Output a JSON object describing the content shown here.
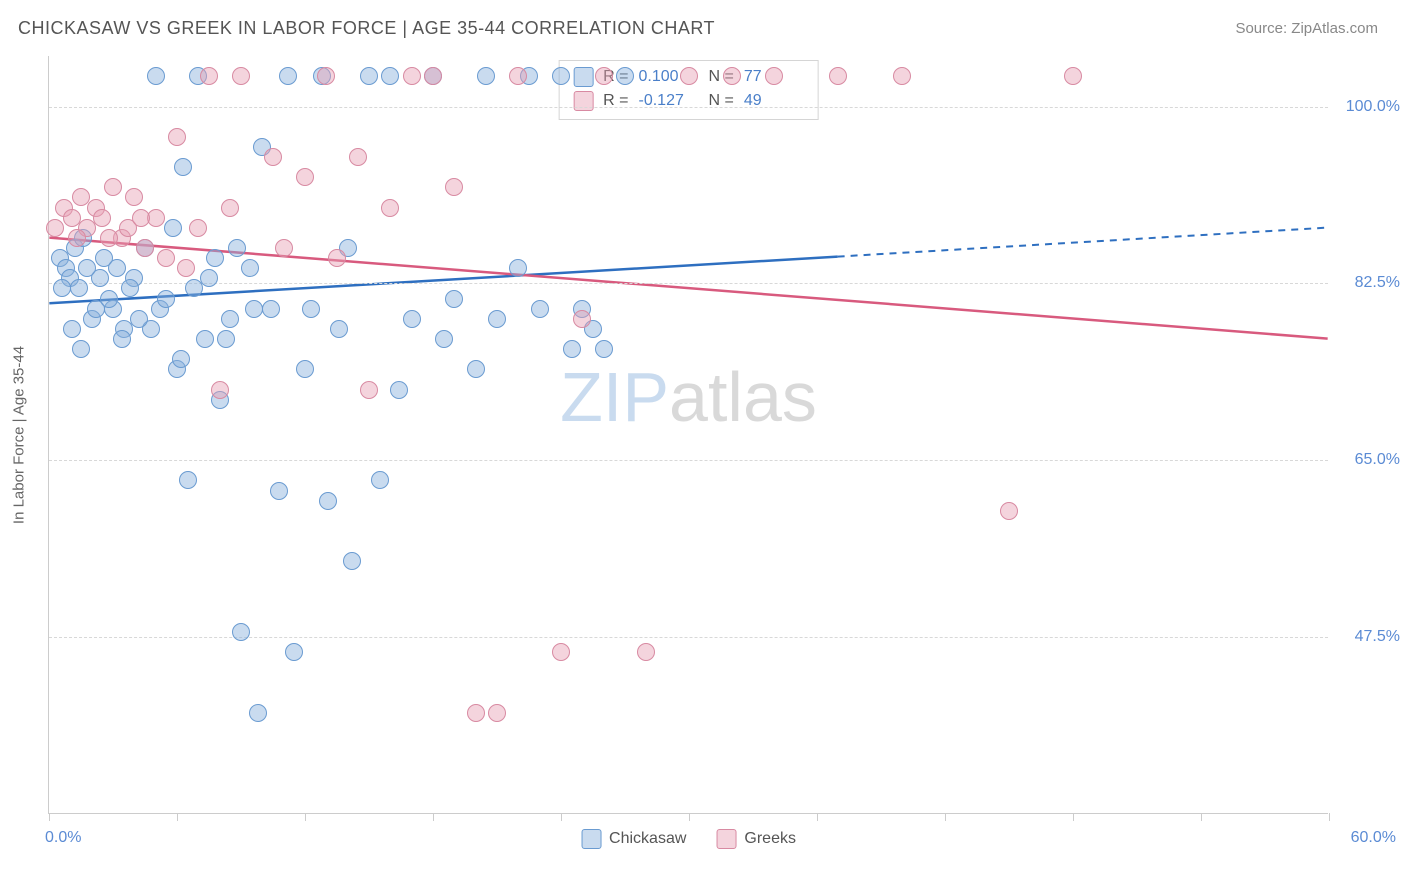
{
  "title": "CHICKASAW VS GREEK IN LABOR FORCE | AGE 35-44 CORRELATION CHART",
  "source": "Source: ZipAtlas.com",
  "y_axis_title": "In Labor Force | Age 35-44",
  "x_min_label": "0.0%",
  "x_max_label": "60.0%",
  "chart": {
    "type": "scatter",
    "xlim": [
      0,
      60
    ],
    "ylim": [
      30,
      105
    ],
    "y_ticks": [
      47.5,
      65.0,
      82.5,
      100.0
    ],
    "y_tick_labels": [
      "47.5%",
      "65.0%",
      "82.5%",
      "100.0%"
    ],
    "x_ticks": [
      0,
      6,
      12,
      18,
      24,
      30,
      36,
      42,
      48,
      54,
      60
    ],
    "grid_color": "#d8d8d8",
    "background_color": "#ffffff",
    "marker_size": 18,
    "series": [
      {
        "name": "Chickasaw",
        "fill": "rgba(136,176,219,0.45)",
        "stroke": "#6a9bd1",
        "R": "0.100",
        "N": "77",
        "trend": {
          "color": "#2e6fc0",
          "width": 2.5,
          "y_at_x0": 80.5,
          "y_at_x60": 88.0,
          "solid_x_end": 37
        },
        "points": [
          [
            0.5,
            85
          ],
          [
            0.8,
            84
          ],
          [
            1.0,
            83
          ],
          [
            1.2,
            86
          ],
          [
            1.4,
            82
          ],
          [
            1.6,
            87
          ],
          [
            2.0,
            79
          ],
          [
            1.1,
            78
          ],
          [
            1.5,
            76
          ],
          [
            2.4,
            83
          ],
          [
            2.6,
            85
          ],
          [
            3.0,
            80
          ],
          [
            3.2,
            84
          ],
          [
            3.5,
            78
          ],
          [
            4.0,
            83
          ],
          [
            4.5,
            86
          ],
          [
            5.0,
            103
          ],
          [
            5.2,
            80
          ],
          [
            5.8,
            88
          ],
          [
            6.0,
            74
          ],
          [
            6.3,
            94
          ],
          [
            6.5,
            63
          ],
          [
            7.0,
            103
          ],
          [
            7.3,
            77
          ],
          [
            7.8,
            85
          ],
          [
            8.0,
            71
          ],
          [
            8.5,
            79
          ],
          [
            9.0,
            48
          ],
          [
            9.4,
            84
          ],
          [
            9.8,
            40
          ],
          [
            10.0,
            96
          ],
          [
            10.4,
            80
          ],
          [
            10.8,
            62
          ],
          [
            11.2,
            103
          ],
          [
            11.5,
            46
          ],
          [
            12.0,
            74
          ],
          [
            12.3,
            80
          ],
          [
            12.8,
            103
          ],
          [
            13.1,
            61
          ],
          [
            13.6,
            78
          ],
          [
            14.0,
            86
          ],
          [
            14.2,
            55
          ],
          [
            15.0,
            103
          ],
          [
            15.5,
            63
          ],
          [
            16.0,
            103
          ],
          [
            16.4,
            72
          ],
          [
            17.0,
            79
          ],
          [
            18.0,
            103
          ],
          [
            18.5,
            77
          ],
          [
            19.0,
            81
          ],
          [
            20.0,
            74
          ],
          [
            20.5,
            103
          ],
          [
            21.0,
            79
          ],
          [
            22.0,
            84
          ],
          [
            22.5,
            103
          ],
          [
            23.0,
            80
          ],
          [
            24.0,
            103
          ],
          [
            24.5,
            76
          ],
          [
            25.0,
            80
          ],
          [
            25.5,
            78
          ],
          [
            26.0,
            76
          ],
          [
            27.0,
            103
          ],
          [
            2.2,
            80
          ],
          [
            3.8,
            82
          ],
          [
            4.8,
            78
          ],
          [
            6.8,
            82
          ],
          [
            8.8,
            86
          ],
          [
            1.8,
            84
          ],
          [
            2.8,
            81
          ],
          [
            3.4,
            77
          ],
          [
            4.2,
            79
          ],
          [
            5.5,
            81
          ],
          [
            6.2,
            75
          ],
          [
            7.5,
            83
          ],
          [
            8.3,
            77
          ],
          [
            9.6,
            80
          ],
          [
            0.6,
            82
          ]
        ]
      },
      {
        "name": "Greeks",
        "fill": "rgba(231,160,180,0.45)",
        "stroke": "#d88aa2",
        "R": "-0.127",
        "N": "49",
        "trend": {
          "color": "#d85a7e",
          "width": 2.5,
          "y_at_x0": 87.0,
          "y_at_x60": 77.0,
          "solid_x_end": 60
        },
        "points": [
          [
            0.3,
            88
          ],
          [
            0.7,
            90
          ],
          [
            1.1,
            89
          ],
          [
            1.5,
            91
          ],
          [
            1.8,
            88
          ],
          [
            2.2,
            90
          ],
          [
            2.5,
            89
          ],
          [
            3.0,
            92
          ],
          [
            3.4,
            87
          ],
          [
            4.0,
            91
          ],
          [
            4.5,
            86
          ],
          [
            5.0,
            89
          ],
          [
            5.5,
            85
          ],
          [
            6.0,
            97
          ],
          [
            6.4,
            84
          ],
          [
            7.0,
            88
          ],
          [
            7.5,
            103
          ],
          [
            8.0,
            72
          ],
          [
            8.5,
            90
          ],
          [
            9.0,
            103
          ],
          [
            10.5,
            95
          ],
          [
            11.0,
            86
          ],
          [
            12.0,
            93
          ],
          [
            13.0,
            103
          ],
          [
            13.5,
            85
          ],
          [
            14.5,
            95
          ],
          [
            15.0,
            72
          ],
          [
            16.0,
            90
          ],
          [
            17.0,
            103
          ],
          [
            18.0,
            103
          ],
          [
            19.0,
            92
          ],
          [
            20.0,
            40
          ],
          [
            21.0,
            40
          ],
          [
            22.0,
            103
          ],
          [
            24.0,
            46
          ],
          [
            25.0,
            79
          ],
          [
            26.0,
            103
          ],
          [
            28.0,
            46
          ],
          [
            30.0,
            103
          ],
          [
            32.0,
            103
          ],
          [
            34.0,
            103
          ],
          [
            37.0,
            103
          ],
          [
            40.0,
            103
          ],
          [
            45.0,
            60
          ],
          [
            48.0,
            103
          ],
          [
            2.8,
            87
          ],
          [
            3.7,
            88
          ],
          [
            4.3,
            89
          ],
          [
            1.3,
            87
          ]
        ]
      }
    ]
  },
  "watermark": {
    "part1": "ZIP",
    "part2": "atlas"
  },
  "legend_labels": [
    "Chickasaw",
    "Greeks"
  ],
  "stat_labels": {
    "R": "R =",
    "N": "N ="
  }
}
